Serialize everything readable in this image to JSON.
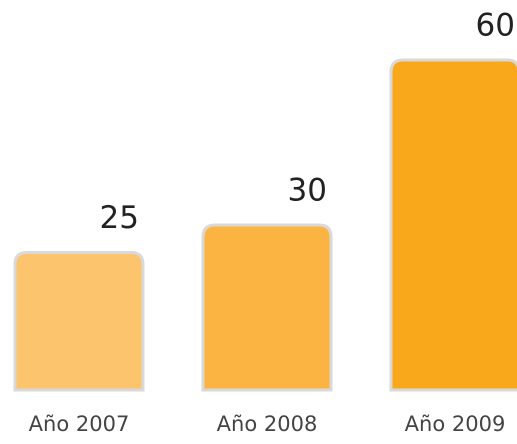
{
  "chart_data": {
    "type": "bar",
    "categories": [
      "Año 2007",
      "Año 2008",
      "Año 2009"
    ],
    "values": [
      25,
      30,
      60
    ],
    "colors": [
      "#fcc46c",
      "#fbb442",
      "#f9a71b"
    ]
  }
}
